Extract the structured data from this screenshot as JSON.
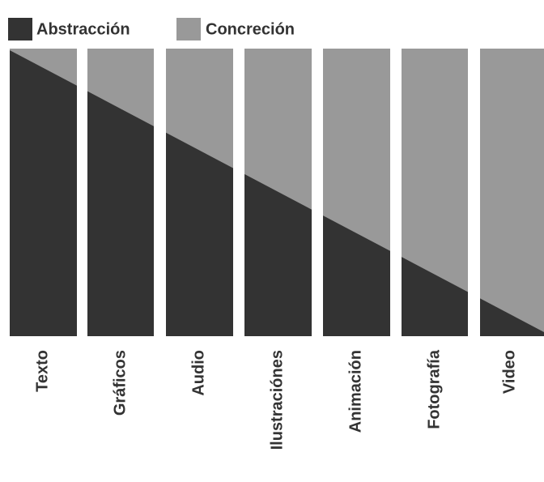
{
  "legend": {
    "items": [
      "Abstracción",
      "Concreción"
    ]
  },
  "columns": [
    "Texto",
    "Gráficos",
    "Audio",
    "Ilustraciónes",
    "Animación",
    "Fotografía",
    "Video"
  ]
}
